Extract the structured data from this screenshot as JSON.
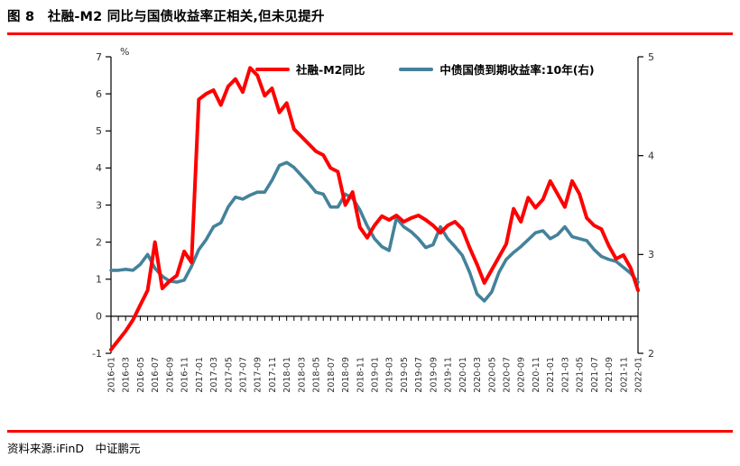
{
  "title": "图 8　社融-M2 同比与国债收益率正相关,但未见提升",
  "footer": {
    "source_label": "资料来源:iFinD　中证鹏元"
  },
  "colors": {
    "accent_rule": "#fe0000",
    "series_red": "#fe0000",
    "series_teal": "#44829a",
    "axis": "#000000",
    "tick_label": "#303030"
  },
  "chart_data": {
    "type": "line",
    "legend": [
      {
        "name": "社融-M2同比",
        "axis": "left",
        "color_key": "series_red"
      },
      {
        "name": "中债国债到期收益率:10年(右)",
        "axis": "right",
        "color_key": "series_teal"
      }
    ],
    "left_axis": {
      "unit": "%",
      "range": [
        -1,
        7
      ],
      "ticks": [
        -1,
        0,
        1,
        2,
        3,
        4,
        5,
        6,
        7
      ]
    },
    "right_axis": {
      "range": [
        2,
        5
      ],
      "ticks": [
        2,
        3,
        4,
        5
      ]
    },
    "x_tick_every": 2,
    "grid": false,
    "x": [
      "2016-01",
      "2016-02",
      "2016-03",
      "2016-04",
      "2016-05",
      "2016-06",
      "2016-07",
      "2016-08",
      "2016-09",
      "2016-10",
      "2016-11",
      "2016-12",
      "2017-01",
      "2017-02",
      "2017-03",
      "2017-04",
      "2017-05",
      "2017-06",
      "2017-07",
      "2017-08",
      "2017-09",
      "2017-10",
      "2017-11",
      "2017-12",
      "2018-01",
      "2018-02",
      "2018-03",
      "2018-04",
      "2018-05",
      "2018-06",
      "2018-07",
      "2018-08",
      "2018-09",
      "2018-10",
      "2018-11",
      "2018-12",
      "2019-01",
      "2019-02",
      "2019-03",
      "2019-04",
      "2019-05",
      "2019-06",
      "2019-07",
      "2019-08",
      "2019-09",
      "2019-10",
      "2019-11",
      "2019-12",
      "2020-01",
      "2020-02",
      "2020-03",
      "2020-04",
      "2020-05",
      "2020-06",
      "2020-07",
      "2020-08",
      "2020-09",
      "2020-10",
      "2020-11",
      "2020-12",
      "2021-01",
      "2021-02",
      "2021-03",
      "2021-04",
      "2021-05",
      "2021-06",
      "2021-07",
      "2021-08",
      "2021-09",
      "2021-10",
      "2021-11",
      "2021-12",
      "2022-01"
    ],
    "series": [
      {
        "name": "社融-M2同比",
        "axis": "left",
        "values": [
          -0.9,
          -0.65,
          -0.4,
          -0.1,
          0.3,
          0.7,
          2.0,
          0.75,
          0.95,
          1.1,
          1.75,
          1.45,
          5.85,
          6.0,
          6.1,
          5.7,
          6.2,
          6.4,
          6.05,
          6.7,
          6.5,
          5.95,
          6.15,
          5.5,
          5.75,
          5.05,
          4.85,
          4.65,
          4.45,
          4.35,
          4.0,
          3.9,
          3.0,
          3.35,
          2.4,
          2.12,
          2.45,
          2.7,
          2.6,
          2.72,
          2.55,
          2.65,
          2.72,
          2.6,
          2.45,
          2.25,
          2.45,
          2.55,
          2.35,
          1.85,
          1.4,
          0.9,
          1.25,
          1.6,
          1.95,
          2.9,
          2.55,
          3.2,
          2.93,
          3.15,
          3.65,
          3.3,
          2.95,
          3.65,
          3.3,
          2.65,
          2.45,
          2.35,
          1.9,
          1.55,
          1.65,
          1.3,
          0.7
        ]
      },
      {
        "name": "中债国债到期收益率:10年(右)",
        "axis": "right",
        "values": [
          2.84,
          2.84,
          2.85,
          2.84,
          2.9,
          3.0,
          2.86,
          2.78,
          2.73,
          2.72,
          2.74,
          2.88,
          3.05,
          3.15,
          3.28,
          3.32,
          3.48,
          3.58,
          3.56,
          3.6,
          3.63,
          3.63,
          3.75,
          3.9,
          3.93,
          3.88,
          3.8,
          3.72,
          3.63,
          3.61,
          3.48,
          3.48,
          3.61,
          3.57,
          3.45,
          3.29,
          3.16,
          3.08,
          3.04,
          3.37,
          3.28,
          3.23,
          3.16,
          3.07,
          3.1,
          3.28,
          3.16,
          3.08,
          2.99,
          2.82,
          2.6,
          2.53,
          2.62,
          2.82,
          2.95,
          3.02,
          3.08,
          3.15,
          3.22,
          3.24,
          3.16,
          3.2,
          3.28,
          3.18,
          3.16,
          3.14,
          3.05,
          2.98,
          2.95,
          2.93,
          2.87,
          2.81,
          2.72
        ]
      }
    ]
  }
}
